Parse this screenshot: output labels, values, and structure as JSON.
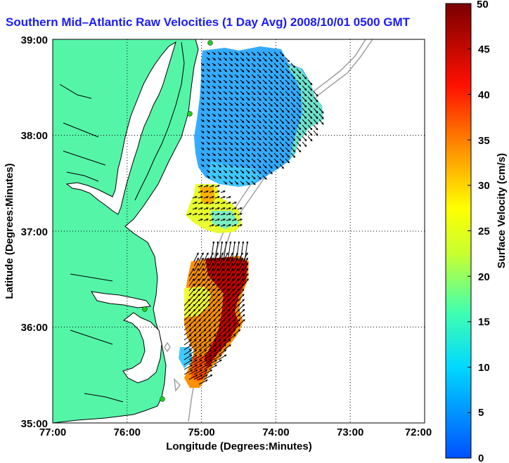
{
  "title": "Southern Mid–Atlantic Raw Velocities (1 Day Avg) 2008/10/01 0500 GMT",
  "map": {
    "xlabel": "Longitude (Degrees:Minutes)",
    "ylabel": "Latitude (Degrees:Minutes)",
    "xticks": [
      "77:00",
      "76:00",
      "75:00",
      "74:00",
      "73:00",
      "72:00"
    ],
    "yticks": [
      "39:00",
      "38:00",
      "37:00",
      "36:00",
      "35:00"
    ],
    "lon_range": [
      -77,
      -72
    ],
    "lat_range": [
      35,
      39
    ],
    "grid": "dotted",
    "land_color": "#55f5a8",
    "coast_color": "#000000",
    "bathymetry_color": "#a0a0a0"
  },
  "colorbar": {
    "label": "Surface Velocity (cm/s)",
    "ticks": [
      "0",
      "5",
      "10",
      "15",
      "20",
      "25",
      "30",
      "35",
      "40",
      "45",
      "50"
    ],
    "min": 0,
    "max": 50,
    "colormap": "jet"
  }
}
